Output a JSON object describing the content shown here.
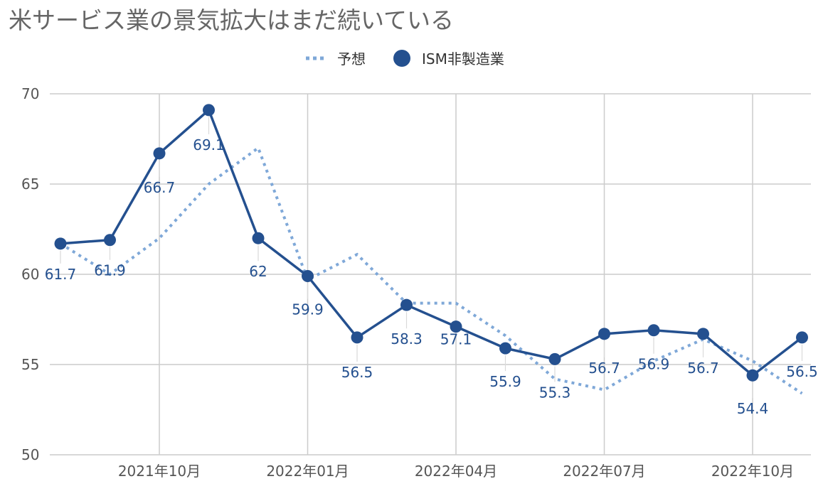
{
  "chart_data": {
    "type": "line",
    "title": "米サービス業の景気拡大はまだ続いている",
    "xlabel": "",
    "ylabel": "",
    "ylim": [
      50,
      70
    ],
    "yticks": [
      50,
      55,
      60,
      65,
      70
    ],
    "grid": true,
    "legend_position": "top",
    "x": [
      "2021年08月",
      "2021年09月",
      "2021年10月",
      "2021年11月",
      "2021年12月",
      "2022年01月",
      "2022年02月",
      "2022年03月",
      "2022年04月",
      "2022年05月",
      "2022年06月",
      "2022年07月",
      "2022年08月",
      "2022年09月",
      "2022年10月",
      "2022年11月"
    ],
    "xtick_labels": [
      "2021年10月",
      "2022年01月",
      "2022年04月",
      "2022年07月",
      "2022年10月"
    ],
    "series": [
      {
        "name": "予想",
        "style": "dotted",
        "color": "#7fa8d8",
        "values": [
          61.7,
          60.0,
          62.0,
          65.0,
          67.0,
          59.7,
          61.1,
          58.4,
          58.4,
          56.6,
          54.2,
          53.6,
          55.2,
          56.4,
          55.2,
          53.4
        ]
      },
      {
        "name": "ISM非製造業",
        "style": "solid-markers",
        "color": "#24508f",
        "values": [
          61.7,
          61.9,
          66.7,
          69.1,
          62.0,
          59.9,
          56.5,
          58.3,
          57.1,
          55.9,
          55.3,
          56.7,
          56.9,
          56.7,
          54.4,
          56.5
        ],
        "data_labels": [
          "61.7",
          "61.9",
          "66.7",
          "69.1",
          "62",
          "59.9",
          "56.5",
          "58.3",
          "57.1",
          "55.9",
          "55.3",
          "56.7",
          "56.9",
          "56.7",
          "54.4",
          "56.5"
        ]
      }
    ]
  }
}
